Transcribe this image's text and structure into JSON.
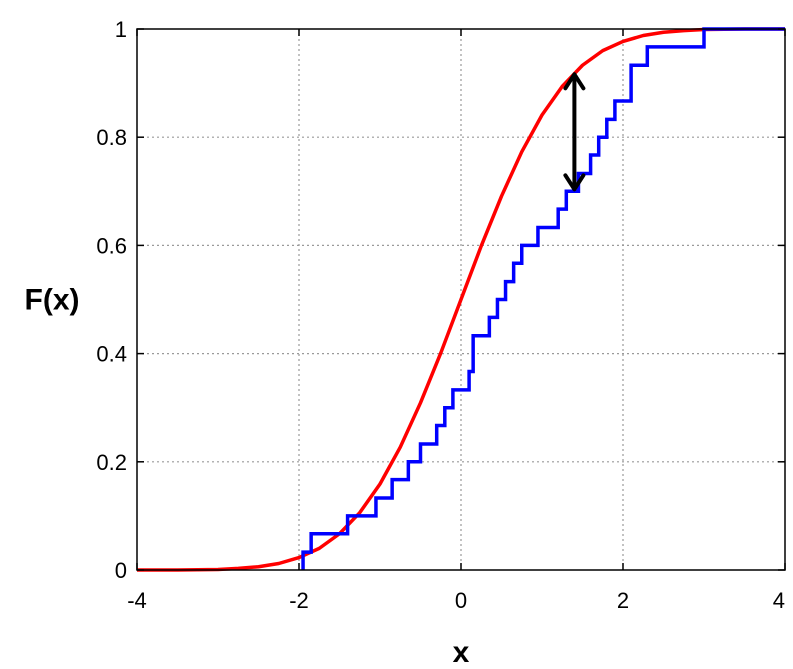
{
  "chart_data": {
    "type": "line",
    "title": "",
    "xlabel": "x",
    "ylabel": "F(x)",
    "xlim": [
      -4,
      4
    ],
    "ylim": [
      0,
      1
    ],
    "x_ticks": [
      -4,
      -2,
      0,
      2,
      4
    ],
    "y_ticks": [
      0,
      0.2,
      0.4,
      0.6,
      0.8,
      1
    ],
    "x_tick_labels": [
      "-4",
      "-2",
      "0",
      "2",
      "4"
    ],
    "y_tick_labels": [
      "0",
      "0.2",
      "0.4",
      "0.6",
      "0.8",
      "1"
    ],
    "grid": true,
    "colors": {
      "cdf_curve": "#ff0000",
      "empirical_cdf": "#0000ff",
      "arrow": "#000000",
      "grid": "#9a9a9a"
    },
    "series": [
      {
        "kind": "smooth",
        "color": "#ff0000",
        "x": [
          -4.0,
          -3.5,
          -3.0,
          -2.75,
          -2.5,
          -2.25,
          -2.0,
          -1.75,
          -1.5,
          -1.25,
          -1.0,
          -0.75,
          -0.5,
          -0.25,
          0.0,
          0.25,
          0.5,
          0.75,
          1.0,
          1.25,
          1.5,
          1.75,
          2.0,
          2.25,
          2.5,
          2.75,
          3.0,
          3.5,
          4.0
        ],
        "y": [
          0.0,
          0.0,
          0.001,
          0.003,
          0.006,
          0.012,
          0.023,
          0.04,
          0.067,
          0.106,
          0.159,
          0.227,
          0.309,
          0.401,
          0.5,
          0.599,
          0.691,
          0.773,
          0.841,
          0.894,
          0.933,
          0.96,
          0.977,
          0.988,
          0.994,
          0.997,
          0.999,
          1.0,
          1.0
        ]
      },
      {
        "kind": "step",
        "color": "#0000ff",
        "x": [
          -1.95,
          -1.85,
          -1.4,
          -1.05,
          -0.85,
          -0.65,
          -0.5,
          -0.3,
          -0.2,
          -0.1,
          0.1,
          0.15,
          0.35,
          0.45,
          0.55,
          0.65,
          0.75,
          0.95,
          1.2,
          1.3,
          1.45,
          1.6,
          1.7,
          1.8,
          1.9,
          2.1,
          2.3,
          3.0
        ],
        "y": [
          0.033,
          0.067,
          0.1,
          0.133,
          0.167,
          0.2,
          0.233,
          0.267,
          0.3,
          0.333,
          0.367,
          0.433,
          0.467,
          0.5,
          0.533,
          0.567,
          0.6,
          0.633,
          0.667,
          0.7,
          0.733,
          0.767,
          0.8,
          0.833,
          0.867,
          0.933,
          0.967,
          1.0
        ]
      }
    ],
    "annotation": {
      "type": "double-arrow",
      "x": 1.4,
      "y_from": 0.7,
      "y_to": 0.92
    }
  }
}
